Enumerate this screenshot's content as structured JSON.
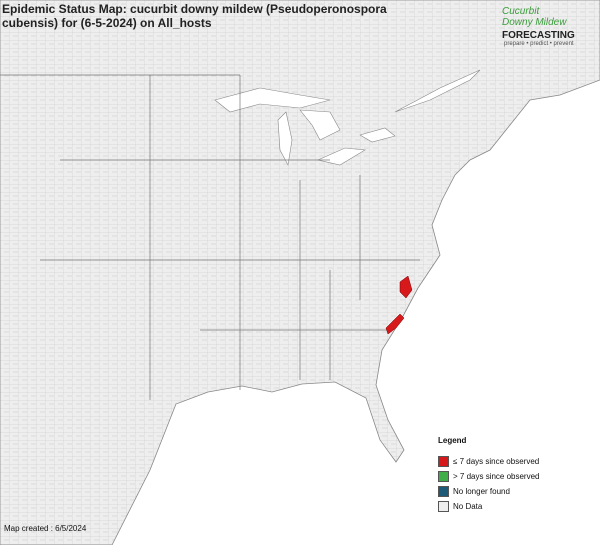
{
  "header": {
    "title": "Epidemic Status Map: cucurbit downy mildew (Pseudoperonospora cubensis) for (6-5-2024) on All_hosts"
  },
  "logo": {
    "line1": "Cucurbit",
    "line2": "Downy Mildew",
    "brand": "FORECASTING",
    "tagline": "prepare • predict • prevent"
  },
  "legend": {
    "title": "Legend",
    "items": [
      {
        "label": "≤ 7 days since observed",
        "color": "#d7191c"
      },
      {
        "label": "> 7 days since observed",
        "color": "#3fae49"
      },
      {
        "label": "No longer found",
        "color": "#1d5a78"
      },
      {
        "label": "No Data",
        "color": "#eeeeee"
      }
    ]
  },
  "footer": {
    "created": "Map created : 6/5/2024"
  }
}
